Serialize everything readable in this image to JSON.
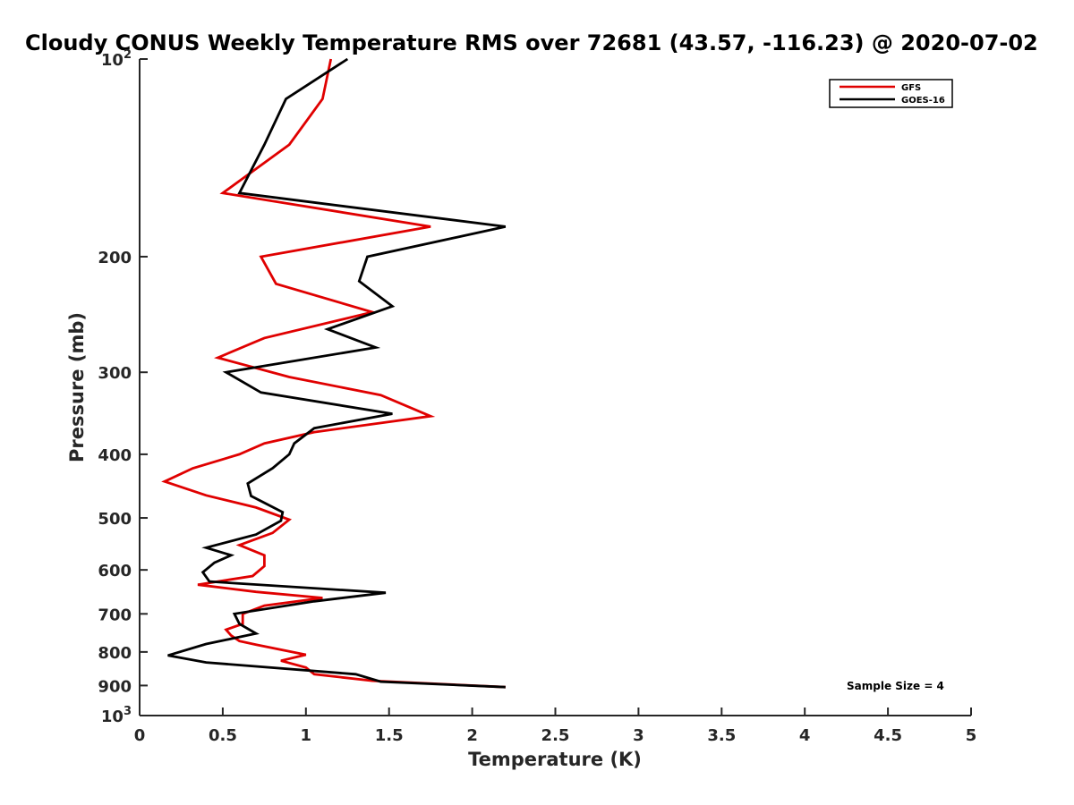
{
  "chart_data": {
    "type": "line",
    "title": "Cloudy CONUS Weekly Temperature RMS over 72681 (43.57, -116.23) @ 2020-07-02",
    "xlabel": "Temperature (K)",
    "ylabel": "Pressure (mb)",
    "xlim": [
      0,
      5
    ],
    "ylim": [
      1000,
      100
    ],
    "y_scale": "log",
    "y_reversed": true,
    "grid": false,
    "legend_position": "top-right",
    "x_ticks": [
      "0",
      "0.5",
      "1",
      "1.5",
      "2",
      "2.5",
      "3",
      "3.5",
      "4",
      "4.5",
      "5"
    ],
    "y_ticks": [
      {
        "value": 100,
        "base": "10",
        "exp": "2"
      },
      {
        "value": 200,
        "base": "200",
        "exp": ""
      },
      {
        "value": 300,
        "base": "300",
        "exp": ""
      },
      {
        "value": 400,
        "base": "400",
        "exp": ""
      },
      {
        "value": 500,
        "base": "500",
        "exp": ""
      },
      {
        "value": 600,
        "base": "600",
        "exp": ""
      },
      {
        "value": 700,
        "base": "700",
        "exp": ""
      },
      {
        "value": 800,
        "base": "800",
        "exp": ""
      },
      {
        "value": 900,
        "base": "900",
        "exp": ""
      },
      {
        "value": 1000,
        "base": "10",
        "exp": "3"
      }
    ],
    "series": [
      {
        "name": "GFS",
        "color": "#e00000",
        "points": [
          [
            1.15,
            100
          ],
          [
            1.1,
            115
          ],
          [
            0.9,
            135
          ],
          [
            0.5,
            160
          ],
          [
            1.75,
            180
          ],
          [
            0.73,
            200
          ],
          [
            0.82,
            220
          ],
          [
            1.4,
            243
          ],
          [
            0.75,
            266
          ],
          [
            0.47,
            285
          ],
          [
            0.9,
            305
          ],
          [
            1.45,
            325
          ],
          [
            1.75,
            350
          ],
          [
            1.05,
            370
          ],
          [
            0.75,
            385
          ],
          [
            0.6,
            400
          ],
          [
            0.32,
            420
          ],
          [
            0.15,
            440
          ],
          [
            0.4,
            462
          ],
          [
            0.7,
            482
          ],
          [
            0.9,
            503
          ],
          [
            0.8,
            527
          ],
          [
            0.6,
            550
          ],
          [
            0.75,
            570
          ],
          [
            0.75,
            592
          ],
          [
            0.68,
            613
          ],
          [
            0.35,
            632
          ],
          [
            0.7,
            648
          ],
          [
            1.1,
            662
          ],
          [
            0.75,
            680
          ],
          [
            0.62,
            700
          ],
          [
            0.62,
            725
          ],
          [
            0.52,
            740
          ],
          [
            0.55,
            755
          ],
          [
            0.6,
            770
          ],
          [
            0.7,
            780
          ],
          [
            1.0,
            808
          ],
          [
            0.85,
            825
          ],
          [
            1.0,
            845
          ],
          [
            1.05,
            865
          ],
          [
            1.4,
            885
          ],
          [
            2.2,
            905
          ]
        ]
      },
      {
        "name": "GOES-16",
        "color": "#000000",
        "points": [
          [
            1.25,
            100
          ],
          [
            0.88,
            115
          ],
          [
            0.75,
            135
          ],
          [
            0.6,
            160
          ],
          [
            2.2,
            180
          ],
          [
            1.37,
            200
          ],
          [
            1.32,
            218
          ],
          [
            1.52,
            238
          ],
          [
            1.13,
            258
          ],
          [
            1.42,
            275
          ],
          [
            0.52,
            300
          ],
          [
            0.73,
            322
          ],
          [
            1.52,
            347
          ],
          [
            1.05,
            365
          ],
          [
            0.93,
            385
          ],
          [
            0.9,
            400
          ],
          [
            0.8,
            420
          ],
          [
            0.65,
            443
          ],
          [
            0.67,
            463
          ],
          [
            0.86,
            490
          ],
          [
            0.85,
            505
          ],
          [
            0.7,
            530
          ],
          [
            0.4,
            555
          ],
          [
            0.55,
            570
          ],
          [
            0.45,
            585
          ],
          [
            0.38,
            605
          ],
          [
            0.42,
            625
          ],
          [
            1.48,
            650
          ],
          [
            1.05,
            670
          ],
          [
            0.57,
            700
          ],
          [
            0.6,
            725
          ],
          [
            0.7,
            750
          ],
          [
            0.4,
            778
          ],
          [
            0.17,
            810
          ],
          [
            0.4,
            830
          ],
          [
            1.3,
            865
          ],
          [
            1.45,
            888
          ],
          [
            2.2,
            905
          ]
        ]
      }
    ],
    "annotation": "Sample Size = 4"
  }
}
